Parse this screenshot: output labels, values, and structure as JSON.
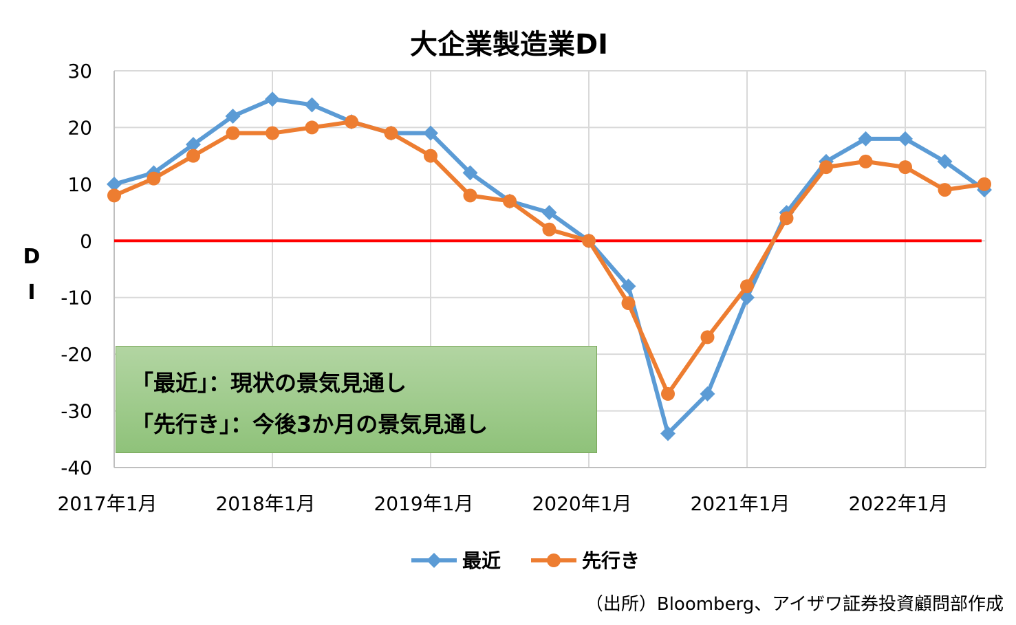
{
  "chart_data": {
    "type": "line",
    "title": "大企業製造業DI",
    "ylabel": "D I",
    "xlabel": "",
    "ylim": [
      -40,
      30
    ],
    "yticks": [
      30,
      20,
      10,
      0,
      -10,
      -20,
      -30,
      -40
    ],
    "xtick_labels": [
      "2017年1月",
      "2018年1月",
      "2019年1月",
      "2020年1月",
      "2021年1月",
      "2022年1月"
    ],
    "x": [
      "2017年1月",
      "2017年4月",
      "2017年7月",
      "2017年10月",
      "2018年1月",
      "2018年4月",
      "2018年7月",
      "2018年10月",
      "2019年1月",
      "2019年4月",
      "2019年7月",
      "2019年10月",
      "2020年1月",
      "2020年4月",
      "2020年7月",
      "2020年10月",
      "2021年1月",
      "2021年4月",
      "2021年7月",
      "2021年10月",
      "2022年1月",
      "2022年4月",
      "2022年7月"
    ],
    "series": [
      {
        "name": "最近",
        "color": "#5b9bd5",
        "marker": "diamond",
        "values": [
          10,
          12,
          17,
          22,
          25,
          24,
          21,
          19,
          19,
          12,
          7,
          5,
          0,
          -8,
          -34,
          -27,
          -10,
          5,
          14,
          18,
          18,
          14,
          9
        ]
      },
      {
        "name": "先行き",
        "color": "#ed7d31",
        "marker": "circle",
        "values": [
          8,
          11,
          15,
          19,
          19,
          20,
          21,
          19,
          15,
          8,
          7,
          2,
          0,
          -11,
          -27,
          -17,
          -8,
          4,
          13,
          14,
          13,
          9,
          10
        ]
      }
    ],
    "zero_line_color": "#ff0000",
    "grid": true,
    "legend_position": "bottom"
  },
  "annotation": {
    "line1": "「最近」：現状の景気見通し",
    "line2": "「先行き」：今後3か月の景気見通し"
  },
  "source": "（出所）Bloomberg、アイザワ証券投資顧問部作成"
}
